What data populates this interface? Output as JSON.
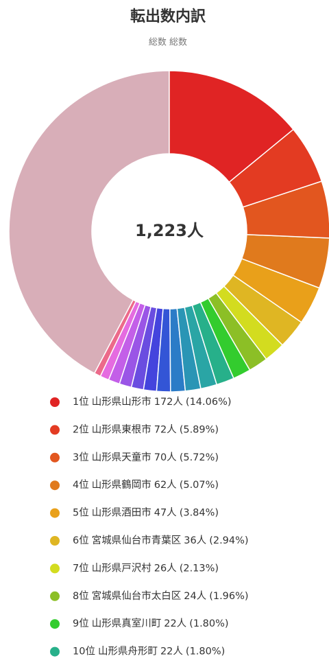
{
  "chart_data": {
    "type": "donut",
    "title": "転出数内訳",
    "subtitle": "総数 総数",
    "total": {
      "value": 1223,
      "label": "1,223人"
    },
    "ranks": [
      "1位",
      "2位",
      "3位",
      "4位",
      "5位",
      "6位",
      "7位",
      "8位",
      "9位",
      "10位",
      null,
      null,
      null,
      null,
      null,
      null,
      null,
      null,
      null,
      null,
      null
    ],
    "categories": [
      "山形県山形市",
      "山形県東根市",
      "山形県天童市",
      "山形県鶴岡市",
      "山形県酒田市",
      "宮城県仙台市青葉区",
      "山形県戸沢村",
      "宮城県仙台市太白区",
      "山形県真室川町",
      "山形県舟形町",
      null,
      null,
      null,
      null,
      null,
      null,
      null,
      null,
      null,
      null,
      null
    ],
    "values": [
      172,
      72,
      70,
      62,
      47,
      36,
      26,
      24,
      22,
      22,
      20,
      19,
      18,
      17,
      16,
      15,
      15,
      14,
      11,
      8,
      517
    ],
    "value_labels": [
      "172人",
      "72人",
      "70人",
      "62人",
      "47人",
      "36人",
      "26人",
      "24人",
      "22人",
      "22人",
      null,
      null,
      null,
      null,
      null,
      null,
      null,
      null,
      null,
      null,
      null
    ],
    "percents": [
      14.06,
      5.89,
      5.72,
      5.07,
      3.84,
      2.94,
      2.13,
      1.96,
      1.8,
      1.8
    ],
    "percent_labels": [
      "(14.06%)",
      "(5.89%)",
      "(5.72%)",
      "(5.07%)",
      "(3.84%)",
      "(2.94%)",
      "(2.13%)",
      "(1.96%)",
      "(1.80%)",
      "(1.80%)"
    ],
    "colors": [
      "#e02424",
      "#e33b22",
      "#e2561f",
      "#e07a1d",
      "#e9a01a",
      "#dfb623",
      "#d3dc1f",
      "#8cbf26",
      "#33cc2e",
      "#27b08a",
      "#2aa5a5",
      "#2a95b5",
      "#2b7cc7",
      "#3355d6",
      "#4444dd",
      "#6a4de0",
      "#9a55e6",
      "#c35fe8",
      "#e56be0",
      "#ec6a8a",
      "#d8aeb8"
    ]
  }
}
